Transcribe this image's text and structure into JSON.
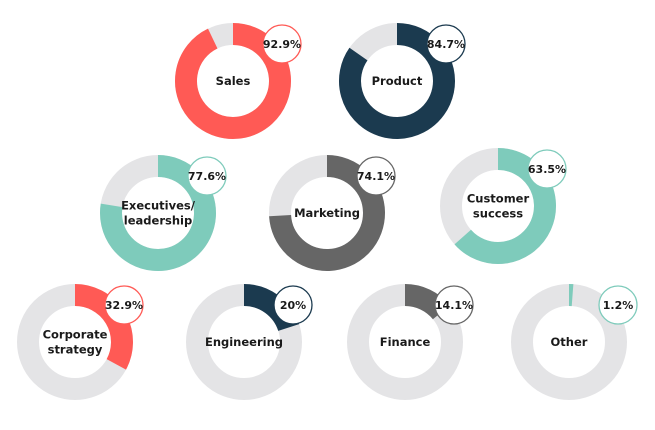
{
  "chart_data": [
    {
      "type": "pie",
      "label": "Sales",
      "value": 92.9,
      "value_label": "92.9%",
      "color": "#ff5a55"
    },
    {
      "type": "pie",
      "label": "Product",
      "value": 84.7,
      "value_label": "84.7%",
      "color": "#1b3a4f"
    },
    {
      "type": "pie",
      "label": "Executives/ leadership",
      "label_lines": [
        "Executives/",
        "leadership"
      ],
      "value": 77.6,
      "value_label": "77.6%",
      "color": "#7ecbbb"
    },
    {
      "type": "pie",
      "label": "Marketing",
      "value": 74.1,
      "value_label": "74.1%",
      "color": "#666666"
    },
    {
      "type": "pie",
      "label": "Customer success",
      "label_lines": [
        "Customer",
        "success"
      ],
      "value": 63.5,
      "value_label": "63.5%",
      "color": "#7ecbbb"
    },
    {
      "type": "pie",
      "label": "Corporate strategy",
      "label_lines": [
        "Corporate",
        "strategy"
      ],
      "value": 32.9,
      "value_label": "32.9%",
      "color": "#ff5a55"
    },
    {
      "type": "pie",
      "label": "Engineering",
      "value": 20,
      "value_label": "20%",
      "color": "#1b3a4f"
    },
    {
      "type": "pie",
      "label": "Finance",
      "value": 14.1,
      "value_label": "14.1%",
      "color": "#666666"
    },
    {
      "type": "pie",
      "label": "Other",
      "value": 1.2,
      "value_label": "1.2%",
      "color": "#7ecbbb"
    }
  ],
  "track_color": "#e4e4e6",
  "unit_max": 100
}
